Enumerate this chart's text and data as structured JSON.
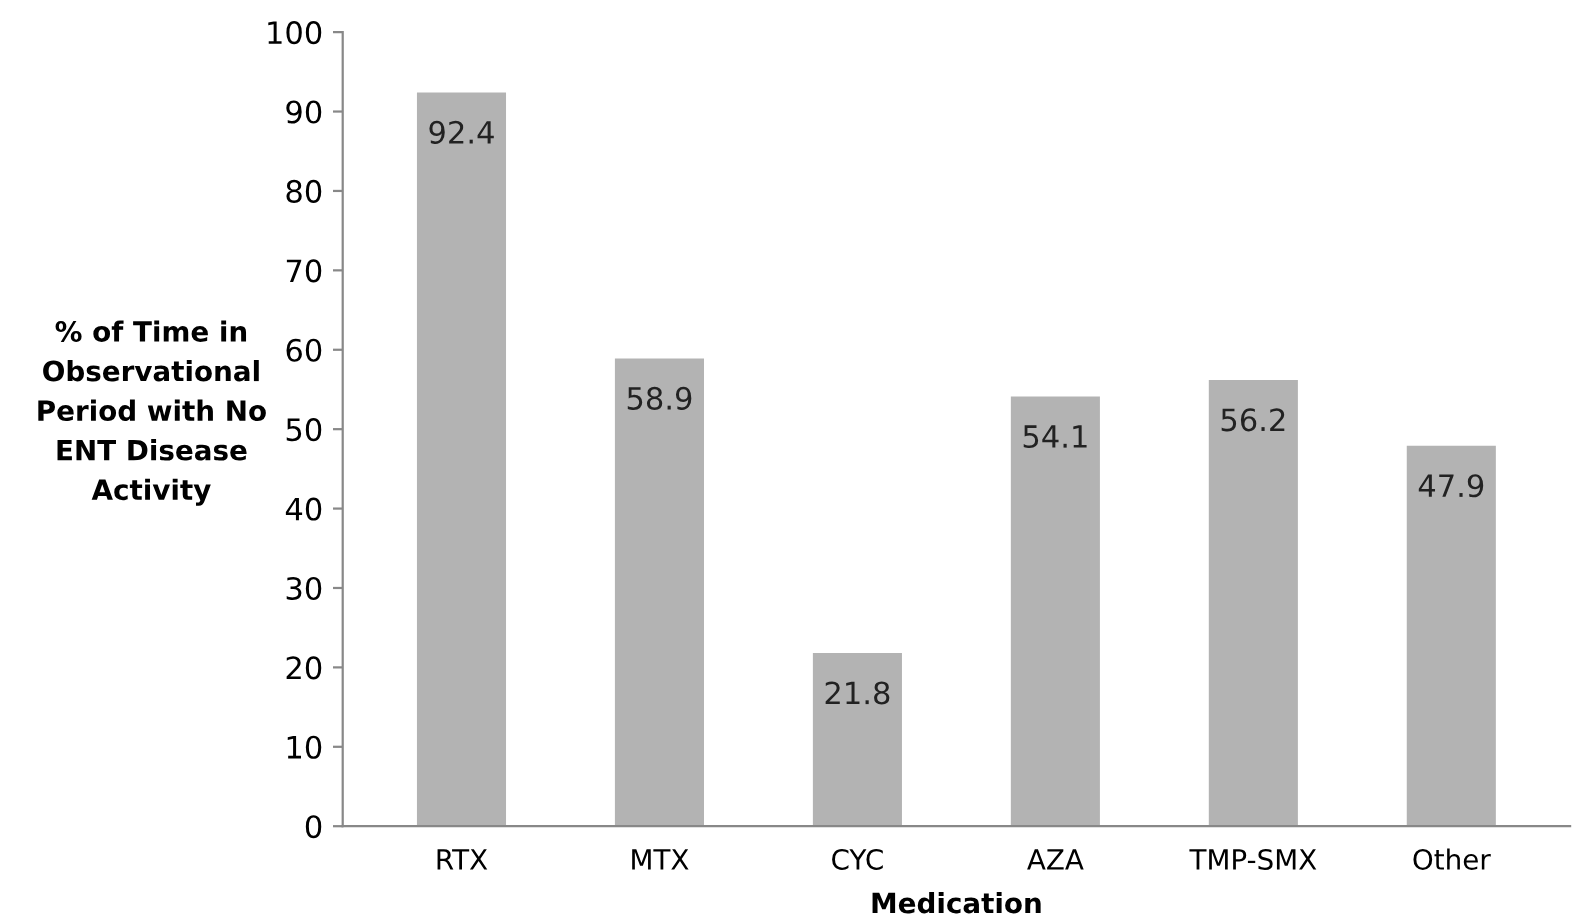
{
  "chart_data": {
    "type": "bar",
    "categories": [
      "RTX",
      "MTX",
      "CYC",
      "AZA",
      "TMP-SMX",
      "Other"
    ],
    "values": [
      92.4,
      58.9,
      21.8,
      54.1,
      56.2,
      47.9
    ],
    "color": "#b3b3b3",
    "xlabel": "Medication",
    "ylabel": "% of Time in\nObservational\nPeriod with No\nENT Disease\nActivity",
    "ylim": [
      0,
      100
    ],
    "yticks": [
      0,
      10,
      20,
      30,
      40,
      50,
      60,
      70,
      80,
      90,
      100
    ],
    "data_labels": true,
    "grid": false
  }
}
